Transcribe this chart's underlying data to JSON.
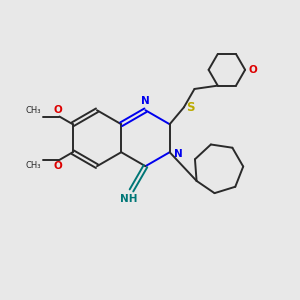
{
  "bg_color": "#e8e8e8",
  "bond_color": "#2a2a2a",
  "N_color": "#0000ee",
  "O_color": "#dd0000",
  "S_color": "#bbaa00",
  "NH_color": "#007777",
  "figsize": [
    3.0,
    3.0
  ],
  "dpi": 100,
  "xlim": [
    0,
    10
  ],
  "ylim": [
    0,
    10
  ]
}
